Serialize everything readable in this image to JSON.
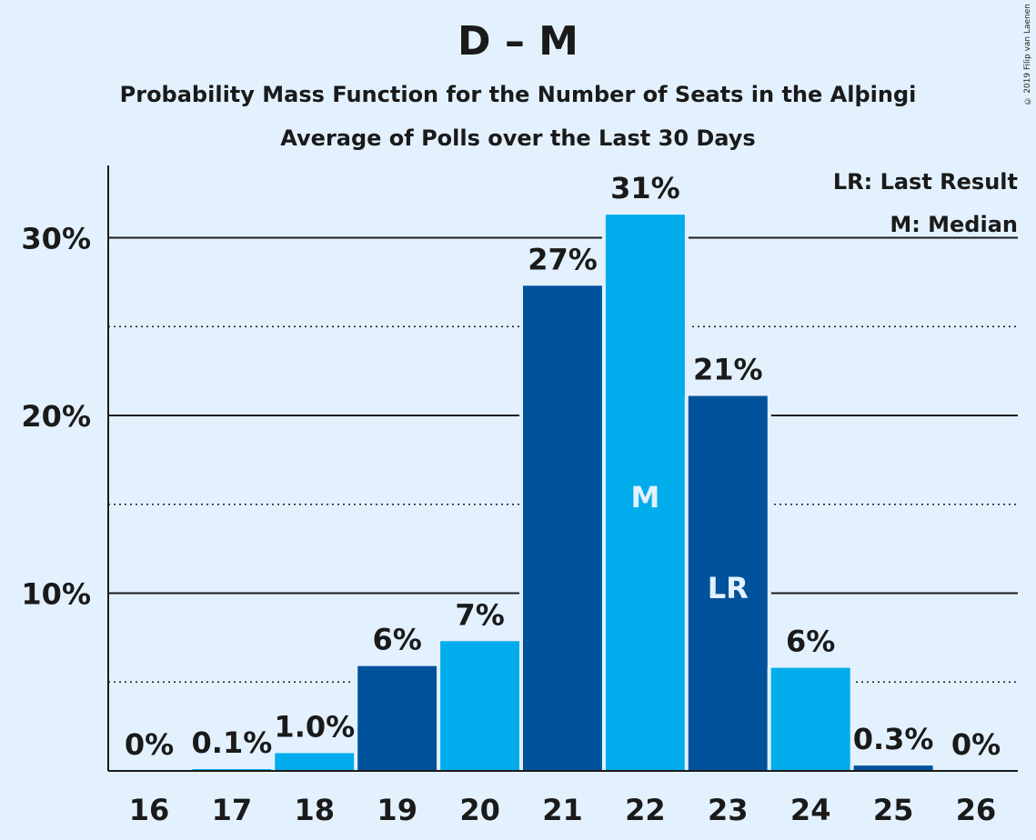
{
  "chart_data": {
    "type": "bar",
    "title": "D – M",
    "subtitle": "Probability Mass Function for the Number of Seats in the Alþingi",
    "subtitle2": "Average of Polls over the Last 30 Days",
    "xlabel": "",
    "ylabel": "",
    "categories": [
      "16",
      "17",
      "18",
      "19",
      "20",
      "21",
      "22",
      "23",
      "24",
      "25",
      "26"
    ],
    "values": [
      0,
      0.1,
      1.0,
      5.9,
      7.3,
      27.3,
      31.3,
      21.1,
      5.8,
      0.3,
      0
    ],
    "labels": [
      "0%",
      "0.1%",
      "1.0%",
      "6%",
      "7%",
      "27%",
      "31%",
      "21%",
      "6%",
      "0.3%",
      "0%"
    ],
    "bar_colors": [
      "#00acec",
      "#00acec",
      "#00acec",
      "#00529a",
      "#00acec",
      "#00529a",
      "#00acec",
      "#00529a",
      "#00acec",
      "#00529a",
      "#00acec"
    ],
    "markers": [
      {
        "category": "22",
        "text": "M"
      },
      {
        "category": "23",
        "text": "LR"
      }
    ],
    "ylim": [
      0,
      34
    ],
    "yticks": [
      {
        "value": 10,
        "label": "10%"
      },
      {
        "value": 20,
        "label": "20%"
      },
      {
        "value": 30,
        "label": "30%"
      }
    ],
    "minor_gridlines": [
      5,
      15,
      25
    ],
    "legend": {
      "placement": "top-right",
      "items": [
        "LR: Last Result",
        "M: Median"
      ]
    },
    "grid": true
  },
  "copyright": "© 2019 Filip van Laenen",
  "colors": {
    "background": "#e3f1ff",
    "light_bar": "#00acec",
    "dark_bar": "#00529a",
    "text": "#1a1a1a"
  }
}
